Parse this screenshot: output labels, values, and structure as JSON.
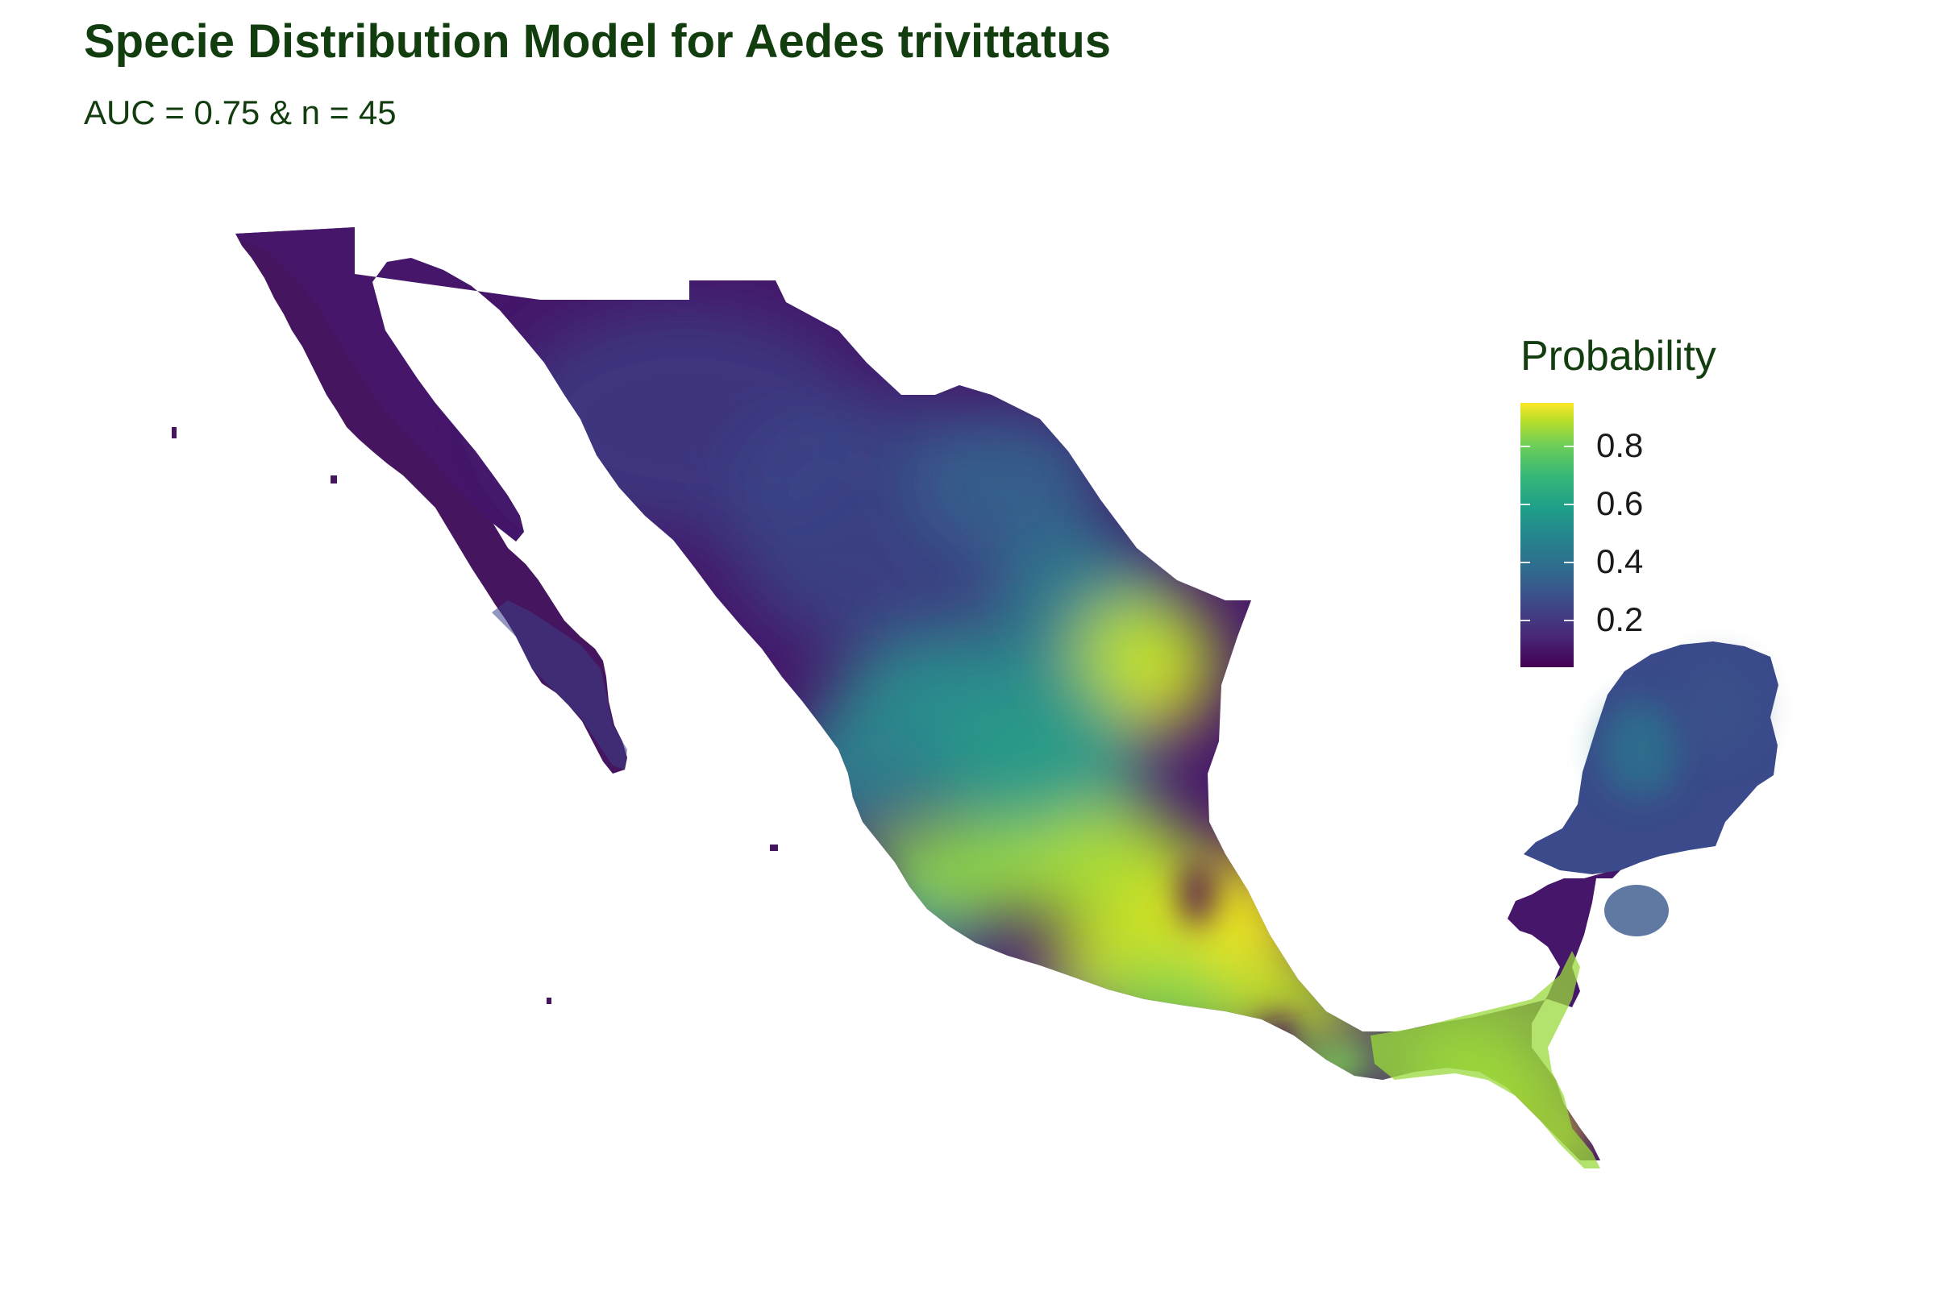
{
  "title": "Specie Distribution Model for Aedes trivittatus",
  "subtitle": "AUC = 0.75 & n = 45",
  "legend": {
    "title": "Probability",
    "colormap": "viridis",
    "range": [
      0.04,
      0.95
    ],
    "ticks": [
      {
        "value": 0.2,
        "label": "0.2"
      },
      {
        "value": 0.4,
        "label": "0.4"
      },
      {
        "value": 0.6,
        "label": "0.6"
      },
      {
        "value": 0.8,
        "label": "0.8"
      }
    ],
    "colors": [
      "#440154",
      "#3b528b",
      "#21918c",
      "#5ec962",
      "#fde725"
    ]
  },
  "map": {
    "region": "Mexico",
    "background": "#ffffff"
  }
}
